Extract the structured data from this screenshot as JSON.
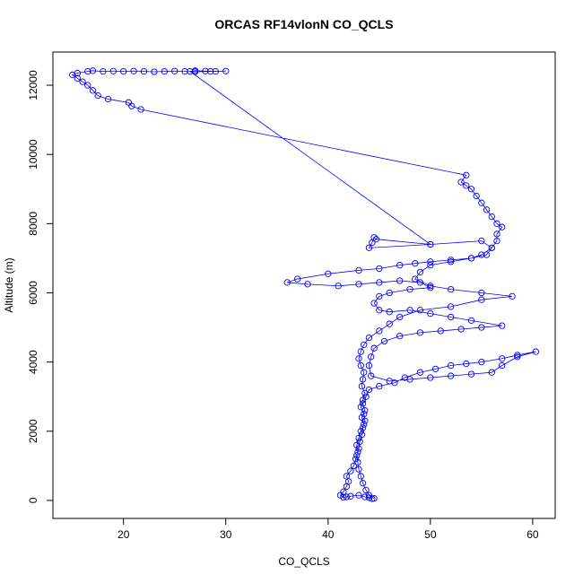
{
  "chart_data": {
    "type": "scatter",
    "title": "ORCAS RF14vlonN CO_QCLS",
    "x_label": "CO_QCLS",
    "y_label": "Altitude (m)",
    "color": "#0000ff",
    "connected": true,
    "xlim": [
      13.1,
      62.2
    ],
    "ylim": [
      -520,
      12960
    ],
    "xticks": [
      20,
      30,
      40,
      50,
      60
    ],
    "yticks": [
      0,
      2000,
      4000,
      6000,
      8000,
      10000,
      12000
    ],
    "x": [
      44.3,
      44.0,
      43.6,
      43.0,
      42.2,
      41.8,
      41.5,
      41.2,
      41.5,
      41.8,
      42.0,
      41.8,
      42.2,
      42.5,
      42.7,
      42.9,
      42.8,
      43.0,
      43.2,
      43.5,
      43.3,
      43.6,
      43.4,
      43.7,
      44.0,
      45.0,
      46.5,
      47.5,
      49.0,
      50.5,
      52.0,
      53.5,
      55.0,
      57.0,
      58.5,
      60.3,
      58.5,
      57.0,
      56.0,
      54.0,
      52.0,
      50.0,
      48.0,
      46.0,
      44.2,
      44.0,
      44.2,
      44.5,
      45.5,
      47.0,
      49.0,
      51.0,
      53.0,
      55.0,
      57.0,
      54.0,
      52.0,
      50.0,
      48.0,
      46.0,
      45.0,
      44.5,
      45.0,
      46.0,
      48.0,
      50.0,
      49.0,
      47.0,
      45.0,
      43.0,
      41.0,
      38.0,
      36.0,
      37.0,
      40.0,
      43.0,
      45.0,
      47.0,
      48.5,
      50.0,
      52.0,
      54.0,
      55.5,
      56.0,
      55.0,
      50.0,
      44.0,
      44.3,
      44.5,
      44.7,
      50.0,
      26.5,
      27.0,
      28.0,
      29.0,
      30.0,
      28.5,
      27.0,
      26.0,
      25.0,
      24.0,
      23.0,
      22.0,
      21.0,
      20.0,
      19.0,
      18.0,
      17.0,
      16.5,
      15.5,
      15.0,
      15.5,
      16.0,
      16.5,
      17.0,
      17.5,
      18.5,
      20.5,
      20.8,
      21.7,
      53.5,
      53.0,
      53.5,
      54.0,
      54.5,
      55.0,
      55.5,
      56.0,
      56.5,
      57.0,
      56.5,
      56.5,
      56.0,
      55.0,
      54.0,
      52.0,
      50.0,
      49.0,
      48.5,
      50.0,
      52.0,
      55.0,
      58.0,
      55.0,
      52.0,
      49.0,
      47.0,
      46.0,
      45.0,
      44.0,
      43.5,
      43.2,
      43.0,
      43.2,
      43.5,
      43.4,
      43.3,
      43.6,
      43.4,
      43.2,
      43.5,
      43.6,
      43.4,
      43.3,
      43.1,
      43.0,
      42.8,
      42.9,
      43.0,
      43.2,
      43.4,
      43.7,
      44.0,
      44.5
    ],
    "values": [
      50,
      80,
      100,
      150,
      120,
      100,
      90,
      150,
      250,
      400,
      550,
      700,
      850,
      1000,
      1200,
      1400,
      1600,
      1800,
      2000,
      2200,
      2400,
      2600,
      2800,
      3000,
      3200,
      3300,
      3400,
      3550,
      3700,
      3800,
      3900,
      3950,
      4000,
      4100,
      4200,
      4300,
      4150,
      3900,
      3700,
      3650,
      3600,
      3550,
      3500,
      3450,
      3600,
      3900,
      4150,
      4400,
      4600,
      4750,
      4850,
      4900,
      4950,
      5000,
      5050,
      5200,
      5300,
      5400,
      5500,
      5450,
      5500,
      5700,
      5900,
      6000,
      6100,
      6150,
      6300,
      6350,
      6300,
      6250,
      6200,
      6250,
      6300,
      6400,
      6550,
      6650,
      6700,
      6800,
      6850,
      6900,
      6950,
      7000,
      7100,
      7300,
      7500,
      7400,
      7300,
      7450,
      7600,
      7550,
      7400,
      12400,
      12420,
      12410,
      12400,
      12410,
      12400,
      12390,
      12400,
      12410,
      12400,
      12390,
      12400,
      12410,
      12400,
      12410,
      12400,
      12420,
      12400,
      12350,
      12300,
      12200,
      12100,
      12000,
      11850,
      11700,
      11600,
      11500,
      11400,
      11300,
      9400,
      9200,
      9100,
      9000,
      8800,
      8600,
      8400,
      8200,
      8000,
      7900,
      7700,
      7500,
      7300,
      7100,
      7000,
      6900,
      6800,
      6600,
      6400,
      6200,
      6100,
      6000,
      5900,
      5800,
      5600,
      5500,
      5300,
      5100,
      4900,
      4700,
      4500,
      4300,
      4100,
      3900,
      3700,
      3500,
      3300,
      3100,
      2900,
      2700,
      2500,
      2300,
      2100,
      1900,
      1700,
      1500,
      1300,
      1100,
      900,
      700,
      500,
      300,
      150,
      60
    ]
  }
}
